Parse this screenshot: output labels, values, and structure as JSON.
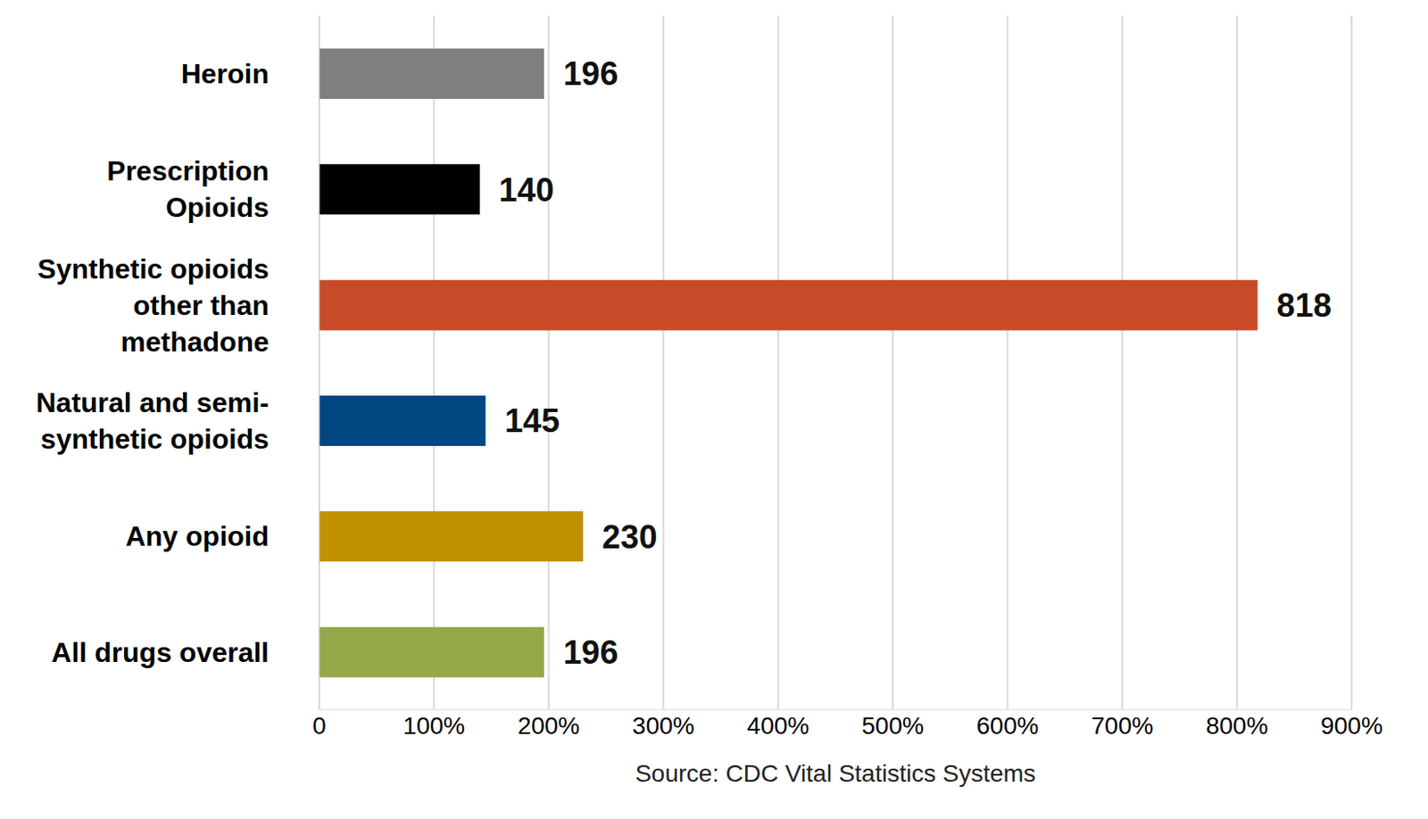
{
  "chart_data": {
    "type": "bar",
    "orientation": "horizontal",
    "categories": [
      "Heroin",
      "Prescription Opioids",
      "Synthetic opioids other than methadone",
      "Natural and semi-synthetic opioids",
      "Any opioid",
      "All drugs overall"
    ],
    "values": [
      196,
      140,
      818,
      145,
      230,
      196
    ],
    "colors": [
      "#7f7f7f",
      "#000000",
      "#c94a28",
      "#004680",
      "#c09100",
      "#94a84a"
    ],
    "xlim": [
      0,
      900
    ],
    "xticks": [
      0,
      {
        "value": 100,
        "label": "100%"
      },
      {
        "value": 200,
        "label": "200%"
      },
      {
        "value": 300,
        "label": "300%"
      },
      {
        "value": 400,
        "label": "400%"
      },
      {
        "value": 500,
        "label": "500%"
      },
      {
        "value": 600,
        "label": "600%"
      },
      {
        "value": 700,
        "label": "700%"
      },
      {
        "value": 800,
        "label": "800%"
      },
      {
        "value": 900,
        "label": "900%"
      }
    ],
    "grid": true,
    "data_labels": true,
    "annotations": [
      "Source: CDC Vital Statistics Systems"
    ]
  }
}
